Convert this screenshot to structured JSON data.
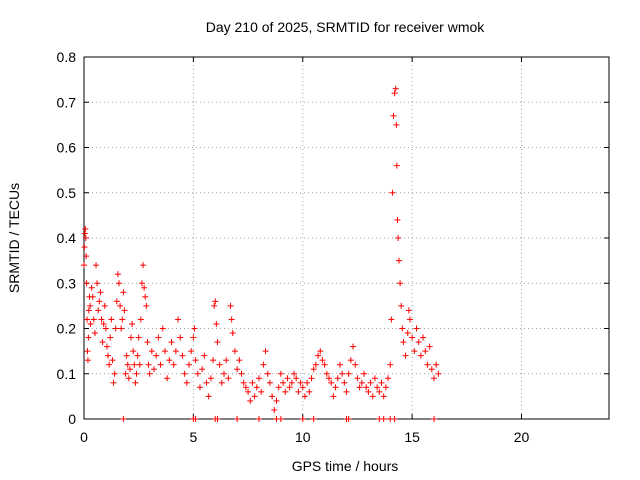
{
  "chart_data": {
    "type": "scatter",
    "title": "Day 210 of 2025, SRMTID for receiver wmok",
    "xlabel": "GPS time / hours",
    "ylabel": "SRMTID / TECUs",
    "xlim": [
      0,
      24
    ],
    "ylim": [
      0,
      0.8
    ],
    "x_ticks": [
      0,
      5,
      10,
      15,
      20
    ],
    "y_ticks": [
      0,
      0.1,
      0.2,
      0.3,
      0.4,
      0.5,
      0.6,
      0.7,
      0.8
    ],
    "x_tick_labels": [
      "0",
      "5",
      "10",
      "15",
      "20"
    ],
    "y_tick_labels": [
      "0",
      "0.1",
      "0.2",
      "0.3",
      "0.4",
      "0.5",
      "0.6",
      "0.7",
      "0.8"
    ],
    "grid": true,
    "marker": "+",
    "color": "#ff0000",
    "series": [
      {
        "name": "SRMTID",
        "points": [
          [
            0.0,
            0.34
          ],
          [
            0.02,
            0.38
          ],
          [
            0.04,
            0.41
          ],
          [
            0.06,
            0.42
          ],
          [
            0.08,
            0.4
          ],
          [
            0.1,
            0.36
          ],
          [
            0.12,
            0.3
          ],
          [
            0.14,
            0.22
          ],
          [
            0.16,
            0.15
          ],
          [
            0.18,
            0.13
          ],
          [
            0.2,
            0.18
          ],
          [
            0.22,
            0.24
          ],
          [
            0.25,
            0.27
          ],
          [
            0.28,
            0.25
          ],
          [
            0.3,
            0.21
          ],
          [
            0.35,
            0.29
          ],
          [
            0.4,
            0.27
          ],
          [
            0.45,
            0.22
          ],
          [
            0.5,
            0.19
          ],
          [
            0.55,
            0.34
          ],
          [
            0.6,
            0.3
          ],
          [
            0.65,
            0.24
          ],
          [
            0.7,
            0.26
          ],
          [
            0.75,
            0.28
          ],
          [
            0.8,
            0.22
          ],
          [
            0.85,
            0.17
          ],
          [
            0.9,
            0.21
          ],
          [
            0.95,
            0.25
          ],
          [
            1.0,
            0.2
          ],
          [
            1.05,
            0.16
          ],
          [
            1.1,
            0.14
          ],
          [
            1.15,
            0.12
          ],
          [
            1.2,
            0.18
          ],
          [
            1.25,
            0.22
          ],
          [
            1.3,
            0.13
          ],
          [
            1.35,
            0.08
          ],
          [
            1.4,
            0.1
          ],
          [
            1.45,
            0.2
          ],
          [
            1.5,
            0.26
          ],
          [
            1.55,
            0.32
          ],
          [
            1.6,
            0.3
          ],
          [
            1.65,
            0.25
          ],
          [
            1.7,
            0.2
          ],
          [
            1.75,
            0.22
          ],
          [
            1.8,
            0.28
          ],
          [
            1.85,
            0.24
          ],
          [
            1.9,
            0.1
          ],
          [
            1.95,
            0.14
          ],
          [
            2.0,
            0.12
          ],
          [
            2.05,
            0.09
          ],
          [
            2.1,
            0.11
          ],
          [
            2.15,
            0.18
          ],
          [
            2.2,
            0.21
          ],
          [
            2.25,
            0.15
          ],
          [
            2.3,
            0.12
          ],
          [
            2.35,
            0.08
          ],
          [
            2.4,
            0.1
          ],
          [
            2.45,
            0.14
          ],
          [
            2.5,
            0.18
          ],
          [
            2.55,
            0.12
          ],
          [
            2.6,
            0.22
          ],
          [
            2.65,
            0.3
          ],
          [
            2.7,
            0.34
          ],
          [
            2.75,
            0.29
          ],
          [
            2.8,
            0.27
          ],
          [
            2.85,
            0.25
          ],
          [
            2.9,
            0.17
          ],
          [
            2.95,
            0.12
          ],
          [
            3.0,
            0.1
          ],
          [
            3.1,
            0.15
          ],
          [
            3.2,
            0.11
          ],
          [
            3.3,
            0.14
          ],
          [
            3.4,
            0.18
          ],
          [
            3.5,
            0.12
          ],
          [
            3.6,
            0.2
          ],
          [
            3.7,
            0.15
          ],
          [
            3.8,
            0.09
          ],
          [
            3.9,
            0.13
          ],
          [
            4.0,
            0.17
          ],
          [
            4.1,
            0.12
          ],
          [
            4.2,
            0.15
          ],
          [
            4.3,
            0.22
          ],
          [
            4.4,
            0.18
          ],
          [
            4.5,
            0.14
          ],
          [
            4.6,
            0.1
          ],
          [
            4.7,
            0.08
          ],
          [
            4.8,
            0.12
          ],
          [
            4.9,
            0.15
          ],
          [
            5.0,
            0.18
          ],
          [
            5.05,
            0.2
          ],
          [
            5.1,
            0.13
          ],
          [
            5.2,
            0.1
          ],
          [
            5.3,
            0.07
          ],
          [
            5.4,
            0.11
          ],
          [
            5.5,
            0.14
          ],
          [
            5.6,
            0.08
          ],
          [
            5.7,
            0.05
          ],
          [
            5.8,
            0.09
          ],
          [
            5.9,
            0.13
          ],
          [
            5.95,
            0.25
          ],
          [
            6.0,
            0.26
          ],
          [
            6.05,
            0.21
          ],
          [
            6.1,
            0.17
          ],
          [
            6.2,
            0.12
          ],
          [
            6.3,
            0.08
          ],
          [
            6.4,
            0.1
          ],
          [
            6.5,
            0.13
          ],
          [
            6.6,
            0.09
          ],
          [
            6.7,
            0.25
          ],
          [
            6.75,
            0.22
          ],
          [
            6.8,
            0.19
          ],
          [
            6.9,
            0.15
          ],
          [
            7.0,
            0.11
          ],
          [
            7.1,
            0.13
          ],
          [
            7.2,
            0.1
          ],
          [
            7.3,
            0.08
          ],
          [
            7.4,
            0.07
          ],
          [
            7.5,
            0.06
          ],
          [
            7.6,
            0.04
          ],
          [
            7.7,
            0.08
          ],
          [
            7.8,
            0.05
          ],
          [
            7.9,
            0.07
          ],
          [
            8.0,
            0.09
          ],
          [
            8.1,
            0.06
          ],
          [
            8.2,
            0.12
          ],
          [
            8.3,
            0.15
          ],
          [
            8.4,
            0.1
          ],
          [
            8.5,
            0.08
          ],
          [
            8.6,
            0.05
          ],
          [
            8.7,
            0.02
          ],
          [
            8.8,
            0.04
          ],
          [
            8.9,
            0.07
          ],
          [
            9.0,
            0.1
          ],
          [
            9.1,
            0.08
          ],
          [
            9.2,
            0.06
          ],
          [
            9.3,
            0.09
          ],
          [
            9.4,
            0.07
          ],
          [
            9.5,
            0.08
          ],
          [
            9.6,
            0.1
          ],
          [
            9.7,
            0.09
          ],
          [
            9.8,
            0.06
          ],
          [
            9.9,
            0.08
          ],
          [
            10.0,
            0.07
          ],
          [
            10.1,
            0.05
          ],
          [
            10.2,
            0.08
          ],
          [
            10.3,
            0.06
          ],
          [
            10.4,
            0.09
          ],
          [
            10.5,
            0.11
          ],
          [
            10.6,
            0.12
          ],
          [
            10.7,
            0.14
          ],
          [
            10.8,
            0.15
          ],
          [
            10.9,
            0.13
          ],
          [
            11.0,
            0.12
          ],
          [
            11.1,
            0.1
          ],
          [
            11.2,
            0.09
          ],
          [
            11.3,
            0.08
          ],
          [
            11.4,
            0.05
          ],
          [
            11.5,
            0.07
          ],
          [
            11.6,
            0.09
          ],
          [
            11.7,
            0.12
          ],
          [
            11.8,
            0.1
          ],
          [
            11.9,
            0.08
          ],
          [
            12.0,
            0.06
          ],
          [
            12.1,
            0.1
          ],
          [
            12.2,
            0.13
          ],
          [
            12.3,
            0.16
          ],
          [
            12.4,
            0.12
          ],
          [
            12.5,
            0.09
          ],
          [
            12.6,
            0.07
          ],
          [
            12.7,
            0.08
          ],
          [
            12.8,
            0.1
          ],
          [
            12.9,
            0.07
          ],
          [
            13.0,
            0.06
          ],
          [
            13.1,
            0.08
          ],
          [
            13.2,
            0.05
          ],
          [
            13.3,
            0.09
          ],
          [
            13.4,
            0.07
          ],
          [
            13.5,
            0.06
          ],
          [
            13.6,
            0.08
          ],
          [
            13.7,
            0.05
          ],
          [
            13.8,
            0.07
          ],
          [
            13.9,
            0.09
          ],
          [
            14.0,
            0.12
          ],
          [
            14.05,
            0.22
          ],
          [
            14.1,
            0.5
          ],
          [
            14.15,
            0.67
          ],
          [
            14.2,
            0.72
          ],
          [
            14.25,
            0.73
          ],
          [
            14.28,
            0.65
          ],
          [
            14.3,
            0.56
          ],
          [
            14.33,
            0.44
          ],
          [
            14.36,
            0.4
          ],
          [
            14.4,
            0.35
          ],
          [
            14.45,
            0.3
          ],
          [
            14.5,
            0.25
          ],
          [
            14.55,
            0.2
          ],
          [
            14.6,
            0.17
          ],
          [
            14.7,
            0.14
          ],
          [
            14.8,
            0.19
          ],
          [
            14.85,
            0.24
          ],
          [
            14.9,
            0.22
          ],
          [
            15.0,
            0.18
          ],
          [
            15.1,
            0.15
          ],
          [
            15.2,
            0.2
          ],
          [
            15.3,
            0.17
          ],
          [
            15.4,
            0.14
          ],
          [
            15.5,
            0.18
          ],
          [
            15.6,
            0.15
          ],
          [
            15.7,
            0.12
          ],
          [
            15.8,
            0.16
          ],
          [
            15.9,
            0.11
          ],
          [
            16.0,
            0.09
          ],
          [
            16.1,
            0.12
          ],
          [
            16.2,
            0.1
          ]
        ]
      }
    ],
    "zero_markers_x": [
      1.8,
      5.0,
      5.1,
      6.0,
      6.1,
      7.0,
      8.0,
      8.8,
      9.0,
      10.0,
      10.5,
      12.0,
      12.1,
      13.5,
      13.7,
      14.0,
      14.2,
      16.0
    ]
  }
}
